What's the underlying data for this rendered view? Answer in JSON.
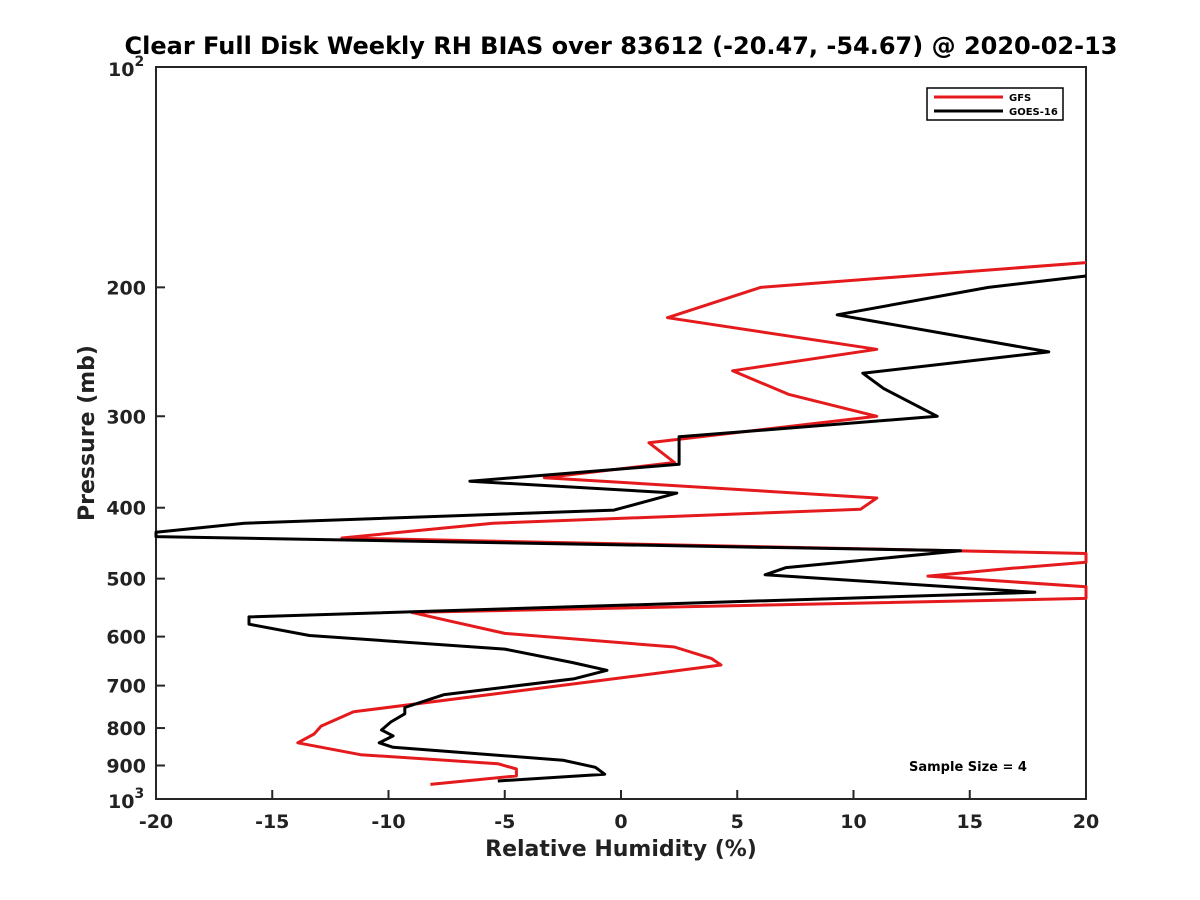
{
  "chart_data": {
    "type": "line",
    "title": "Clear Full Disk Weekly RH BIAS over 83612 (-20.47, -54.67) @ 2020-02-13",
    "xlabel": "Relative Humidity (%)",
    "ylabel": "Pressure (mb)",
    "xlim": [
      -20,
      20
    ],
    "ylim": [
      100,
      1000
    ],
    "y_scale": "log",
    "y_reversed": true,
    "grid": false,
    "legend_position": "top-right",
    "x_ticks": [
      -20,
      -15,
      -10,
      -5,
      0,
      5,
      10,
      15,
      20
    ],
    "x_tick_labels": [
      "-20",
      "-15",
      "-10",
      "-5",
      "0",
      "5",
      "10",
      "15",
      "20"
    ],
    "y_ticks": [
      {
        "value": 100,
        "base": "10",
        "exp": "2"
      },
      {
        "value": 200,
        "label": "200"
      },
      {
        "value": 300,
        "label": "300"
      },
      {
        "value": 400,
        "label": "400"
      },
      {
        "value": 500,
        "label": "500"
      },
      {
        "value": 600,
        "label": "600"
      },
      {
        "value": 700,
        "label": "700"
      },
      {
        "value": 800,
        "label": "800"
      },
      {
        "value": 900,
        "label": "900"
      },
      {
        "value": 1000,
        "base": "10",
        "exp": "3"
      }
    ],
    "annotation": "Sample Size = 4",
    "series": [
      {
        "name": "GFS",
        "color": "#e41a1c",
        "points": [
          [
            20.0,
            185
          ],
          [
            6.0,
            200
          ],
          [
            2.0,
            220
          ],
          [
            11.0,
            243
          ],
          [
            4.8,
            260
          ],
          [
            7.2,
            280
          ],
          [
            11.0,
            300
          ],
          [
            1.2,
            326
          ],
          [
            2.3,
            347
          ],
          [
            -3.3,
            364
          ],
          [
            11.0,
            388
          ],
          [
            10.3,
            402
          ],
          [
            -5.5,
            420
          ],
          [
            -12.0,
            440
          ],
          [
            20.0,
            462
          ],
          [
            20.0,
            475
          ],
          [
            16.8,
            484
          ],
          [
            13.2,
            496
          ],
          [
            20.0,
            513
          ],
          [
            20.0,
            532
          ],
          [
            -9.0,
            556
          ],
          [
            -7.5,
            570
          ],
          [
            -5.0,
            594
          ],
          [
            2.3,
            620
          ],
          [
            3.9,
            643
          ],
          [
            4.3,
            656
          ],
          [
            0.5,
            680
          ],
          [
            -11.5,
            760
          ],
          [
            -12.9,
            795
          ],
          [
            -13.2,
            815
          ],
          [
            -13.9,
            838
          ],
          [
            -11.2,
            870
          ],
          [
            -5.3,
            895
          ],
          [
            -4.5,
            910
          ],
          [
            -4.5,
            930
          ],
          [
            -8.2,
            955
          ]
        ]
      },
      {
        "name": "GOES-16",
        "color": "#000000",
        "points": [
          [
            20.0,
            193
          ],
          [
            15.8,
            200
          ],
          [
            9.3,
            218
          ],
          [
            18.4,
            245
          ],
          [
            10.4,
            262
          ],
          [
            11.3,
            275
          ],
          [
            13.6,
            300
          ],
          [
            2.5,
            320
          ],
          [
            2.5,
            349
          ],
          [
            -6.5,
            368
          ],
          [
            2.4,
            382
          ],
          [
            -0.3,
            403
          ],
          [
            -16.2,
            420
          ],
          [
            -20.0,
            432
          ],
          [
            -20.0,
            438
          ],
          [
            14.6,
            458
          ],
          [
            7.1,
            483
          ],
          [
            6.2,
            494
          ],
          [
            17.8,
            522
          ],
          [
            -16.0,
            564
          ],
          [
            -16.0,
            577
          ],
          [
            -13.4,
            598
          ],
          [
            -5.0,
            624
          ],
          [
            -2.1,
            651
          ],
          [
            -0.6,
            667
          ],
          [
            -2.0,
            685
          ],
          [
            -7.6,
            720
          ],
          [
            -9.3,
            750
          ],
          [
            -9.3,
            765
          ],
          [
            -9.9,
            785
          ],
          [
            -10.3,
            805
          ],
          [
            -9.8,
            820
          ],
          [
            -10.4,
            838
          ],
          [
            -9.8,
            850
          ],
          [
            -2.5,
            885
          ],
          [
            -1.1,
            905
          ],
          [
            -0.7,
            925
          ],
          [
            -5.3,
            945
          ]
        ]
      }
    ]
  }
}
